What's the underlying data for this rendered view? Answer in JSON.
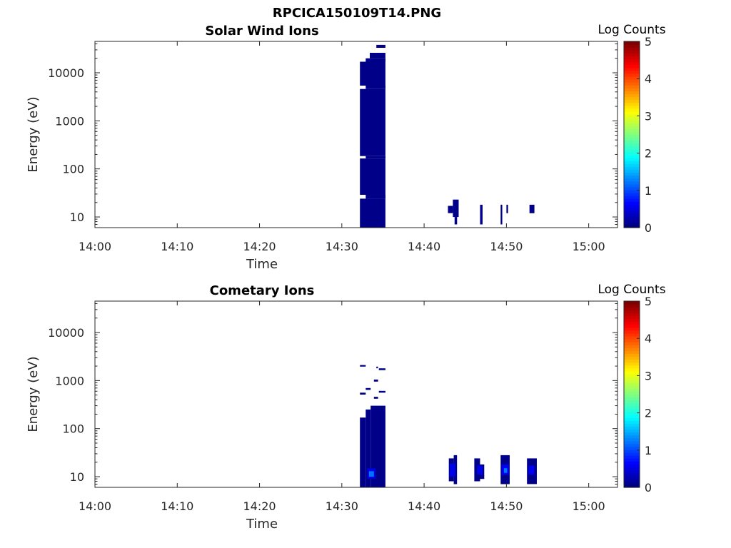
{
  "figure_title": "RPCICA150109T14.PNG",
  "colors": {
    "colormap": [
      "#00007f",
      "#0000ff",
      "#007fff",
      "#00ffff",
      "#7fff7f",
      "#ffff00",
      "#ff7f00",
      "#ff0000",
      "#7f0000"
    ],
    "axis": "#262626"
  },
  "chart_data": [
    {
      "type": "heatmap",
      "title": "Solar Wind Ions",
      "xlabel": "Time",
      "ylabel": "Energy (eV)",
      "x_ticks": [
        "14:00",
        "14:10",
        "14:20",
        "14:30",
        "14:40",
        "14:50",
        "15:00"
      ],
      "xlim_min": [
        0,
        63.5
      ],
      "y_scale": "log",
      "ylim": [
        6,
        45000
      ],
      "y_ticks": [
        {
          "v": 10,
          "label": "10"
        },
        {
          "v": 100,
          "label": "100"
        },
        {
          "v": 1000,
          "label": "1000"
        },
        {
          "v": 10000,
          "label": "10000"
        }
      ],
      "colorbar": {
        "title": "Log Counts",
        "range": [
          0,
          5
        ],
        "ticks": [
          "0",
          "1",
          "2",
          "3",
          "4",
          "5"
        ]
      },
      "cells": [
        {
          "t0": 32.2,
          "t1": 35.3,
          "e0": 6,
          "e1": 24,
          "z": 0.05
        },
        {
          "t0": 32.2,
          "t1": 35.3,
          "e0": 29,
          "e1": 165,
          "z": 0.05
        },
        {
          "t0": 32.2,
          "t1": 35.3,
          "e0": 185,
          "e1": 4600,
          "z": 0.05
        },
        {
          "t0": 32.2,
          "t1": 35.3,
          "e0": 5400,
          "e1": 17000,
          "z": 0.05
        },
        {
          "t0": 32.9,
          "t1": 35.3,
          "e0": 4600,
          "e1": 5400,
          "z": 0.05
        },
        {
          "t0": 32.9,
          "t1": 35.3,
          "e0": 165,
          "e1": 185,
          "z": 0.05
        },
        {
          "t0": 32.9,
          "t1": 35.3,
          "e0": 24,
          "e1": 29,
          "z": 0.05
        },
        {
          "t0": 32.9,
          "t1": 35.3,
          "e0": 17000,
          "e1": 20000,
          "z": 0.05
        },
        {
          "t0": 33.4,
          "t1": 35.3,
          "e0": 20000,
          "e1": 26000,
          "z": 0.05
        },
        {
          "t0": 34.2,
          "t1": 35.3,
          "e0": 33000,
          "e1": 38000,
          "z": 0.05
        },
        {
          "t0": 42.9,
          "t1": 43.5,
          "e0": 12,
          "e1": 17,
          "z": 0.05
        },
        {
          "t0": 43.5,
          "t1": 44.2,
          "e0": 10,
          "e1": 23,
          "z": 0.05
        },
        {
          "t0": 43.7,
          "t1": 44.0,
          "e0": 7,
          "e1": 10,
          "z": 0.05
        },
        {
          "t0": 46.8,
          "t1": 47.1,
          "e0": 7,
          "e1": 18,
          "z": 0.05
        },
        {
          "t0": 49.3,
          "t1": 49.5,
          "e0": 7,
          "e1": 18,
          "z": 0.05
        },
        {
          "t0": 50.0,
          "t1": 50.2,
          "e0": 12,
          "e1": 18,
          "z": 0.05
        },
        {
          "t0": 52.8,
          "t1": 53.4,
          "e0": 12,
          "e1": 18,
          "z": 0.05
        }
      ]
    },
    {
      "type": "heatmap",
      "title": "Cometary Ions",
      "xlabel": "Time",
      "ylabel": "Energy (eV)",
      "x_ticks": [
        "14:00",
        "14:10",
        "14:20",
        "14:30",
        "14:40",
        "14:50",
        "15:00"
      ],
      "xlim_min": [
        0,
        63.5
      ],
      "y_scale": "log",
      "ylim": [
        6,
        45000
      ],
      "y_ticks": [
        {
          "v": 10,
          "label": "10"
        },
        {
          "v": 100,
          "label": "100"
        },
        {
          "v": 1000,
          "label": "1000"
        },
        {
          "v": 10000,
          "label": "10000"
        }
      ],
      "colorbar": {
        "title": "Log Counts",
        "range": [
          0,
          5
        ],
        "ticks": [
          "0",
          "1",
          "2",
          "3",
          "4",
          "5"
        ]
      },
      "cells": [
        {
          "t0": 32.2,
          "t1": 32.9,
          "e0": 1950,
          "e1": 2100,
          "z": 0.05
        },
        {
          "t0": 34.2,
          "t1": 34.4,
          "e0": 1800,
          "e1": 1950,
          "z": 0.05
        },
        {
          "t0": 34.5,
          "t1": 35.3,
          "e0": 1650,
          "e1": 1800,
          "z": 0.05
        },
        {
          "t0": 33.9,
          "t1": 34.4,
          "e0": 950,
          "e1": 1050,
          "z": 0.05
        },
        {
          "t0": 32.9,
          "t1": 33.5,
          "e0": 640,
          "e1": 700,
          "z": 0.05
        },
        {
          "t0": 34.5,
          "t1": 35.3,
          "e0": 560,
          "e1": 610,
          "z": 0.05
        },
        {
          "t0": 32.2,
          "t1": 32.9,
          "e0": 510,
          "e1": 560,
          "z": 0.05
        },
        {
          "t0": 33.9,
          "t1": 34.4,
          "e0": 420,
          "e1": 460,
          "z": 0.05
        },
        {
          "t0": 33.5,
          "t1": 35.3,
          "e0": 6,
          "e1": 300,
          "z": 0.05
        },
        {
          "t0": 32.9,
          "t1": 33.5,
          "e0": 6,
          "e1": 250,
          "z": 0.05
        },
        {
          "t0": 32.2,
          "t1": 32.9,
          "e0": 6,
          "e1": 170,
          "z": 0.05
        },
        {
          "t0": 33.1,
          "t1": 34.1,
          "e0": 9,
          "e1": 15,
          "z": 0.5
        },
        {
          "t0": 33.3,
          "t1": 33.9,
          "e0": 10,
          "e1": 13,
          "z": 1.2
        },
        {
          "t0": 43.0,
          "t1": 43.6,
          "e0": 8,
          "e1": 24,
          "z": 0.05
        },
        {
          "t0": 43.6,
          "t1": 44.0,
          "e0": 7,
          "e1": 28,
          "z": 0.05
        },
        {
          "t0": 43.1,
          "t1": 43.8,
          "e0": 10,
          "e1": 19,
          "z": 0.5
        },
        {
          "t0": 46.1,
          "t1": 46.8,
          "e0": 8,
          "e1": 24,
          "z": 0.05
        },
        {
          "t0": 46.8,
          "t1": 47.3,
          "e0": 9,
          "e1": 18,
          "z": 0.05
        },
        {
          "t0": 46.4,
          "t1": 47.1,
          "e0": 11,
          "e1": 17,
          "z": 0.5
        },
        {
          "t0": 49.3,
          "t1": 50.4,
          "e0": 7,
          "e1": 28,
          "z": 0.05
        },
        {
          "t0": 49.4,
          "t1": 50.3,
          "e0": 11,
          "e1": 18,
          "z": 0.55
        },
        {
          "t0": 49.7,
          "t1": 50.1,
          "e0": 12,
          "e1": 15,
          "z": 1.2
        },
        {
          "t0": 52.5,
          "t1": 53.7,
          "e0": 7,
          "e1": 24,
          "z": 0.05
        },
        {
          "t0": 52.7,
          "t1": 53.4,
          "e0": 11,
          "e1": 17,
          "z": 0.55
        }
      ]
    }
  ]
}
